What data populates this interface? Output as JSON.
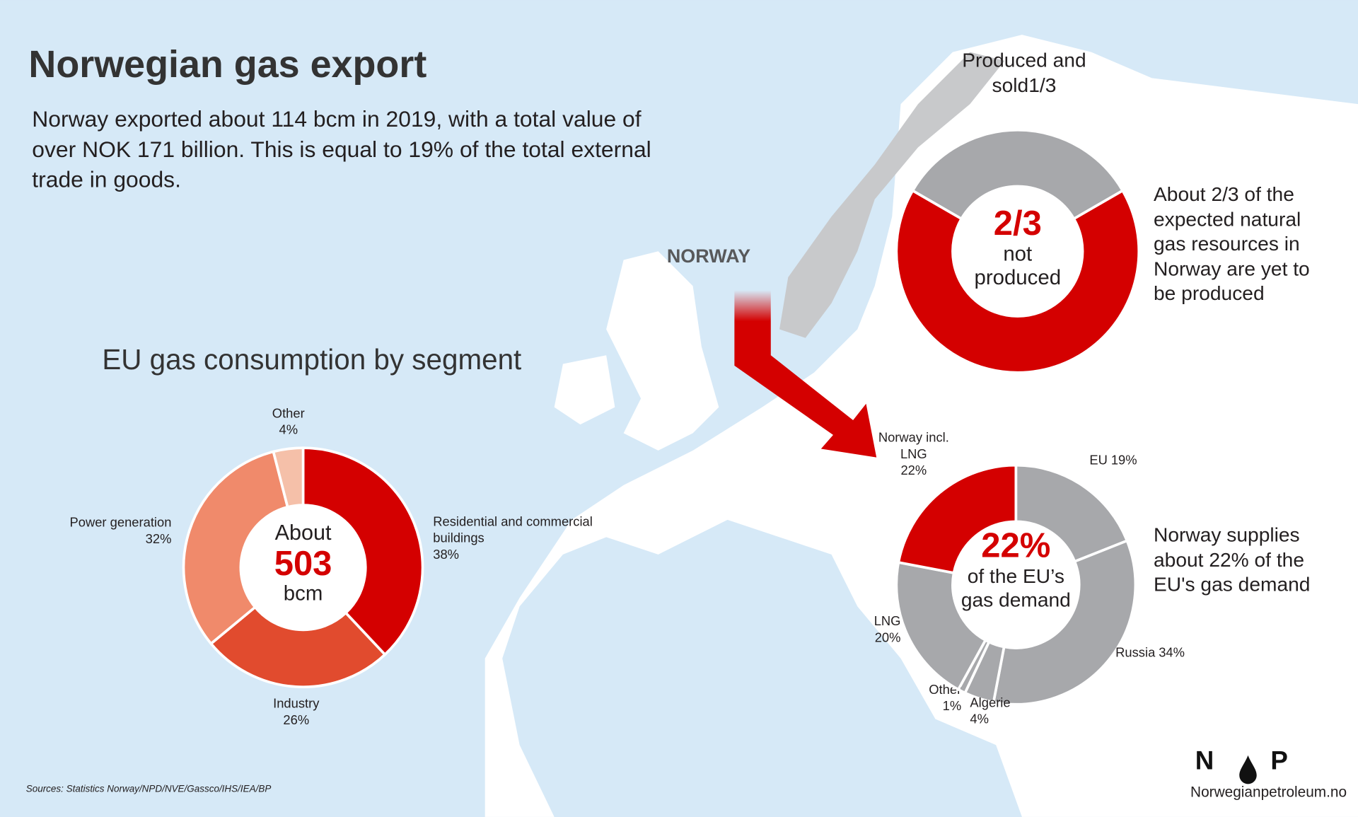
{
  "title": "Norwegian gas export",
  "description": "Norway exported about 114 bcm in 2019, with a total value of over NOK 171 billion. This is equal to 19% of the total external trade in goods.",
  "map_label": "NORWAY",
  "sources": "Sources: Statistics Norway/NPD/NVE/Gassco/IHS/IEA/BP",
  "logo": {
    "left": "N",
    "right": "P",
    "site": "Norwegianpetroleum.no"
  },
  "chart_data": [
    {
      "type": "donut",
      "title": "EU gas consumption by segment",
      "categories": [
        "Residential and commercial buildings",
        "Industry",
        "Power generation",
        "Other"
      ],
      "values": [
        38,
        26,
        32,
        4
      ],
      "value_labels": [
        "38%",
        "26%",
        "32%",
        "4%"
      ],
      "colors": [
        "#d40000",
        "#e14b2e",
        "#f08a6b",
        "#f5c0a9"
      ],
      "center_prefix": "About",
      "total": 503,
      "unit": "bcm"
    },
    {
      "type": "donut",
      "categories": [
        "Produced and sold",
        "not produced"
      ],
      "values": [
        0.3333,
        0.6667
      ],
      "value_labels": [
        "1/3",
        "2/3"
      ],
      "colors": [
        "#a7a8ab",
        "#d40000"
      ],
      "annotation": "About 2/3 of the expected natural gas resources in Norway are yet to be produced"
    },
    {
      "type": "donut",
      "categories": [
        "EU",
        "Russia",
        "Algerie",
        "Other",
        "LNG",
        "Norway incl. LNG"
      ],
      "values": [
        19,
        34,
        4,
        1,
        20,
        22
      ],
      "value_labels": [
        "19%",
        "34%",
        "4%",
        "1%",
        "20%",
        "22%"
      ],
      "colors": [
        "#a7a8ab",
        "#a7a8ab",
        "#a7a8ab",
        "#a7a8ab",
        "#a7a8ab",
        "#d40000"
      ],
      "center_text": "of the EU’s gas demand",
      "annotation": "Norway supplies about 22% of the EU's gas demand"
    }
  ]
}
